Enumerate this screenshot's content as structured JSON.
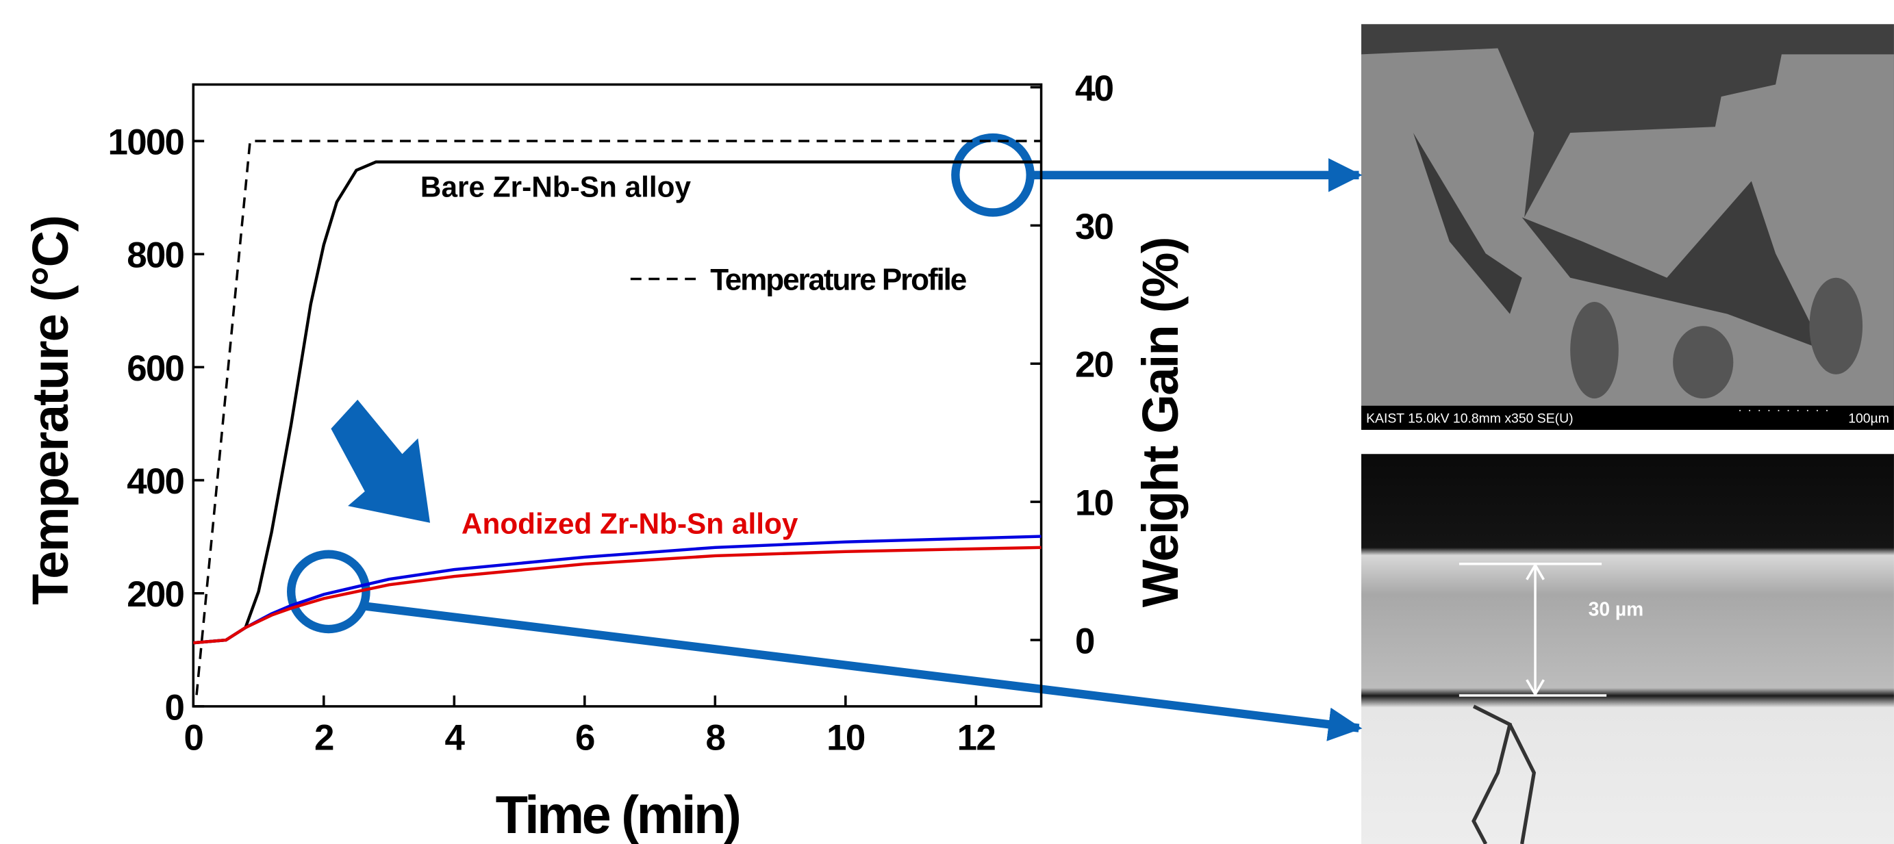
{
  "chart_data": {
    "type": "line",
    "x_label": "Time (min)",
    "y_label": "Temperature (°C)",
    "y2_label": "Weight Gain (%)",
    "xlim": [
      0,
      13
    ],
    "xticks": [
      0,
      2,
      4,
      6,
      8,
      10,
      12
    ],
    "ylim": [
      0,
      1100
    ],
    "yticks": [
      0,
      200,
      400,
      600,
      800,
      1000
    ],
    "y2lim": [
      -4.8,
      40.2
    ],
    "y2ticks": [
      0,
      10,
      20,
      30,
      40
    ],
    "series": [
      {
        "name": "Temperature Profile",
        "color": "#000000",
        "style": "dashed",
        "axis": "y",
        "x": [
          0.05,
          0.87,
          13
        ],
        "values": [
          20,
          1000,
          1000
        ]
      },
      {
        "name": "Bare Zr-Nb-Sn alloy",
        "color": "#000000",
        "style": "solid",
        "axis": "y2",
        "x": [
          0,
          0.5,
          0.8,
          1.0,
          1.2,
          1.5,
          1.8,
          2.0,
          2.2,
          2.5,
          2.8,
          13
        ],
        "values": [
          -0.2,
          0,
          0.9,
          3.5,
          7.8,
          15.6,
          24.3,
          28.6,
          31.7,
          34.0,
          34.6,
          34.6
        ]
      },
      {
        "color": "#0000e0",
        "style": "solid",
        "axis": "y2",
        "x": [
          0,
          0.5,
          0.8,
          1.2,
          1.5,
          2,
          3,
          4,
          6,
          8,
          10,
          13
        ],
        "values": [
          -0.2,
          0,
          0.9,
          1.9,
          2.5,
          3.3,
          4.4,
          5.1,
          6.0,
          6.7,
          7.1,
          7.5
        ]
      },
      {
        "name": "Anodized Zr-Nb-Sn alloy",
        "color": "#e00000",
        "style": "solid",
        "axis": "y2",
        "x": [
          0,
          0.5,
          0.8,
          1.2,
          1.5,
          2,
          3,
          4,
          6,
          8,
          10,
          13
        ],
        "values": [
          -0.2,
          0,
          0.9,
          1.8,
          2.3,
          3.0,
          4.0,
          4.6,
          5.5,
          6.1,
          6.4,
          6.7
        ]
      }
    ]
  },
  "micrographs": [
    {
      "caption": "KAIST 15.0kV 10.8mm x350 SE(U)",
      "scale_label": "100µm"
    },
    {
      "scale_label": "30 µm"
    }
  ]
}
